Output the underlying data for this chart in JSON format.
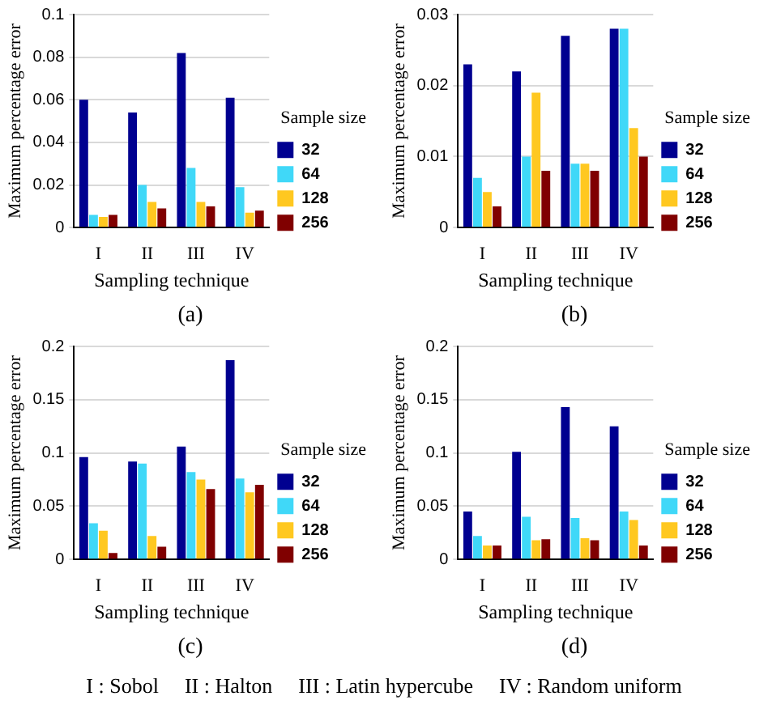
{
  "chart_data": [
    {
      "type": "bar",
      "title": "(a)",
      "xlabel": "Sampling technique",
      "ylabel": "Maximum percentage error",
      "legend_title": "Sample size",
      "legend": "right",
      "grid": "y",
      "categories": [
        "I",
        "II",
        "III",
        "IV"
      ],
      "ylim": [
        0,
        0.1
      ],
      "yticks": [
        0,
        0.02,
        0.04,
        0.06,
        0.08,
        0.1
      ],
      "series": [
        {
          "name": "32",
          "color": "#000090",
          "values": [
            0.06,
            0.054,
            0.082,
            0.061
          ]
        },
        {
          "name": "64",
          "color": "#40d8f8",
          "values": [
            0.006,
            0.02,
            0.028,
            0.019
          ]
        },
        {
          "name": "128",
          "color": "#ffc820",
          "values": [
            0.005,
            0.012,
            0.012,
            0.007
          ]
        },
        {
          "name": "256",
          "color": "#800000",
          "values": [
            0.006,
            0.009,
            0.01,
            0.008
          ]
        }
      ]
    },
    {
      "type": "bar",
      "title": "(b)",
      "xlabel": "Sampling technique",
      "ylabel": "Maximum percentage error",
      "legend_title": "Sample size",
      "legend": "right",
      "grid": "y",
      "categories": [
        "I",
        "II",
        "III",
        "IV"
      ],
      "ylim": [
        0,
        0.03
      ],
      "yticks": [
        0,
        0.01,
        0.02,
        0.03
      ],
      "series": [
        {
          "name": "32",
          "color": "#000090",
          "values": [
            0.023,
            0.022,
            0.027,
            0.028
          ]
        },
        {
          "name": "64",
          "color": "#40d8f8",
          "values": [
            0.007,
            0.01,
            0.009,
            0.028
          ]
        },
        {
          "name": "128",
          "color": "#ffc820",
          "values": [
            0.005,
            0.019,
            0.009,
            0.014
          ]
        },
        {
          "name": "256",
          "color": "#800000",
          "values": [
            0.003,
            0.008,
            0.008,
            0.01
          ]
        }
      ]
    },
    {
      "type": "bar",
      "title": "(c)",
      "xlabel": "Sampling technique",
      "ylabel": "Maximum percentage error",
      "legend_title": "Sample size",
      "legend": "right",
      "grid": "y",
      "categories": [
        "I",
        "II",
        "III",
        "IV"
      ],
      "ylim": [
        0,
        0.2
      ],
      "yticks": [
        0,
        0.05,
        0.1,
        0.15,
        0.2
      ],
      "series": [
        {
          "name": "32",
          "color": "#000090",
          "values": [
            0.096,
            0.092,
            0.106,
            0.187
          ]
        },
        {
          "name": "64",
          "color": "#40d8f8",
          "values": [
            0.034,
            0.09,
            0.082,
            0.076
          ]
        },
        {
          "name": "128",
          "color": "#ffc820",
          "values": [
            0.027,
            0.022,
            0.075,
            0.063
          ]
        },
        {
          "name": "256",
          "color": "#800000",
          "values": [
            0.006,
            0.012,
            0.066,
            0.07
          ]
        }
      ]
    },
    {
      "type": "bar",
      "title": "(d)",
      "xlabel": "Sampling technique",
      "ylabel": "Maximum percentage error",
      "legend_title": "Sample size",
      "legend": "right",
      "grid": "y",
      "categories": [
        "I",
        "II",
        "III",
        "IV"
      ],
      "ylim": [
        0,
        0.2
      ],
      "yticks": [
        0,
        0.05,
        0.1,
        0.15,
        0.2
      ],
      "series": [
        {
          "name": "32",
          "color": "#000090",
          "values": [
            0.045,
            0.101,
            0.143,
            0.125
          ]
        },
        {
          "name": "64",
          "color": "#40d8f8",
          "values": [
            0.022,
            0.04,
            0.039,
            0.045
          ]
        },
        {
          "name": "128",
          "color": "#ffc820",
          "values": [
            0.013,
            0.018,
            0.02,
            0.037
          ]
        },
        {
          "name": "256",
          "color": "#800000",
          "values": [
            0.013,
            0.019,
            0.018,
            0.013
          ]
        }
      ],
      "annotations": [
        "I : Sobol",
        "II : Halton",
        "III : Latin hypercube",
        "IV : Random uniform"
      ]
    }
  ]
}
